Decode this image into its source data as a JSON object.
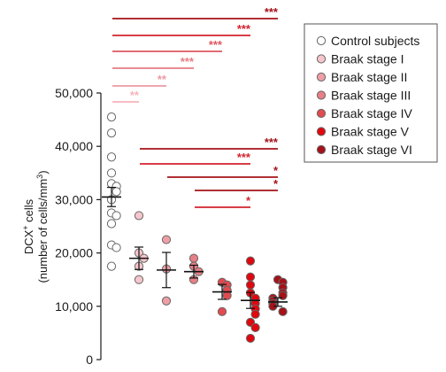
{
  "chart_data": {
    "type": "scatter",
    "ylabel_line1": "DCX",
    "ylabel_sup": "+",
    "ylabel_line1_suffix": " cells",
    "ylabel_line2": "(number of cells/mm",
    "ylabel_line2_sup": "3",
    "ylabel_line2_suffix": ")",
    "ylim": [
      0,
      50000
    ],
    "yticks": [
      {
        "value": 0,
        "label": "0"
      },
      {
        "value": 10000,
        "label": "10,000"
      },
      {
        "value": 20000,
        "label": "20,000"
      },
      {
        "value": 30000,
        "label": "30,000"
      },
      {
        "value": 40000,
        "label": "40,000"
      },
      {
        "value": 50000,
        "label": "50,000"
      }
    ],
    "legend_position": "top-right",
    "series": [
      {
        "name": "Control subjects",
        "color": "#ffffff",
        "stroke": "#666666",
        "mean": 30500,
        "sem": 1800,
        "values": [
          45500,
          42500,
          38000,
          35000,
          33000,
          32500,
          31500,
          30000,
          27500,
          27000,
          25500,
          21500,
          21000,
          17500
        ]
      },
      {
        "name": "Braak stage I",
        "color": "#f7c6cc",
        "stroke": "#666666",
        "mean": 19000,
        "sem": 2100,
        "values": [
          27000,
          20000,
          19000,
          17500,
          15000
        ]
      },
      {
        "name": "Braak stage II",
        "color": "#ee9fa6",
        "stroke": "#666666",
        "mean": 16800,
        "sem": 3300,
        "values": [
          22500,
          17000,
          11000
        ]
      },
      {
        "name": "Braak stage III",
        "color": "#e87f86",
        "stroke": "#666666",
        "mean": 16500,
        "sem": 1200,
        "values": [
          19000,
          17500,
          16500,
          15000
        ]
      },
      {
        "name": "Braak stage IV",
        "color": "#e24a4f",
        "stroke": "#666666",
        "mean": 12700,
        "sem": 1400,
        "values": [
          14500,
          14000,
          13000,
          12000,
          9000
        ]
      },
      {
        "name": "Braak stage V",
        "color": "#e0070e",
        "stroke": "#666666",
        "mean": 11100,
        "sem": 1500,
        "values": [
          18500,
          15500,
          14000,
          12500,
          11500,
          10500,
          9500,
          8500,
          7000,
          6000,
          4000
        ]
      },
      {
        "name": "Braak stage VI",
        "color": "#a5121a",
        "stroke": "#666666",
        "mean": 10800,
        "sem": 800,
        "values": [
          15000,
          14500,
          13500,
          12500,
          12000,
          11500,
          11000,
          10500,
          10000,
          9000
        ]
      }
    ],
    "comparisons": [
      {
        "from": 0,
        "to": 1,
        "label": "**",
        "color": "#f4b3b9"
      },
      {
        "from": 0,
        "to": 2,
        "label": "**",
        "color": "#ec9aa1"
      },
      {
        "from": 0,
        "to": 3,
        "label": "***",
        "color": "#e57c84"
      },
      {
        "from": 0,
        "to": 4,
        "label": "***",
        "color": "#de5760"
      },
      {
        "from": 0,
        "to": 5,
        "label": "***",
        "color": "#d2232d"
      },
      {
        "from": 0,
        "to": 6,
        "label": "***",
        "color": "#a5121a"
      },
      {
        "from": 1,
        "to": 6,
        "label": "***",
        "color": "#a5121a"
      },
      {
        "from": 1,
        "to": 5,
        "label": "***",
        "color": "#d2232d"
      },
      {
        "from": 2,
        "to": 6,
        "label": "*",
        "color": "#a5121a"
      },
      {
        "from": 3,
        "to": 6,
        "label": "*",
        "color": "#a5121a"
      },
      {
        "from": 3,
        "to": 5,
        "label": "*",
        "color": "#d2232d"
      }
    ]
  }
}
